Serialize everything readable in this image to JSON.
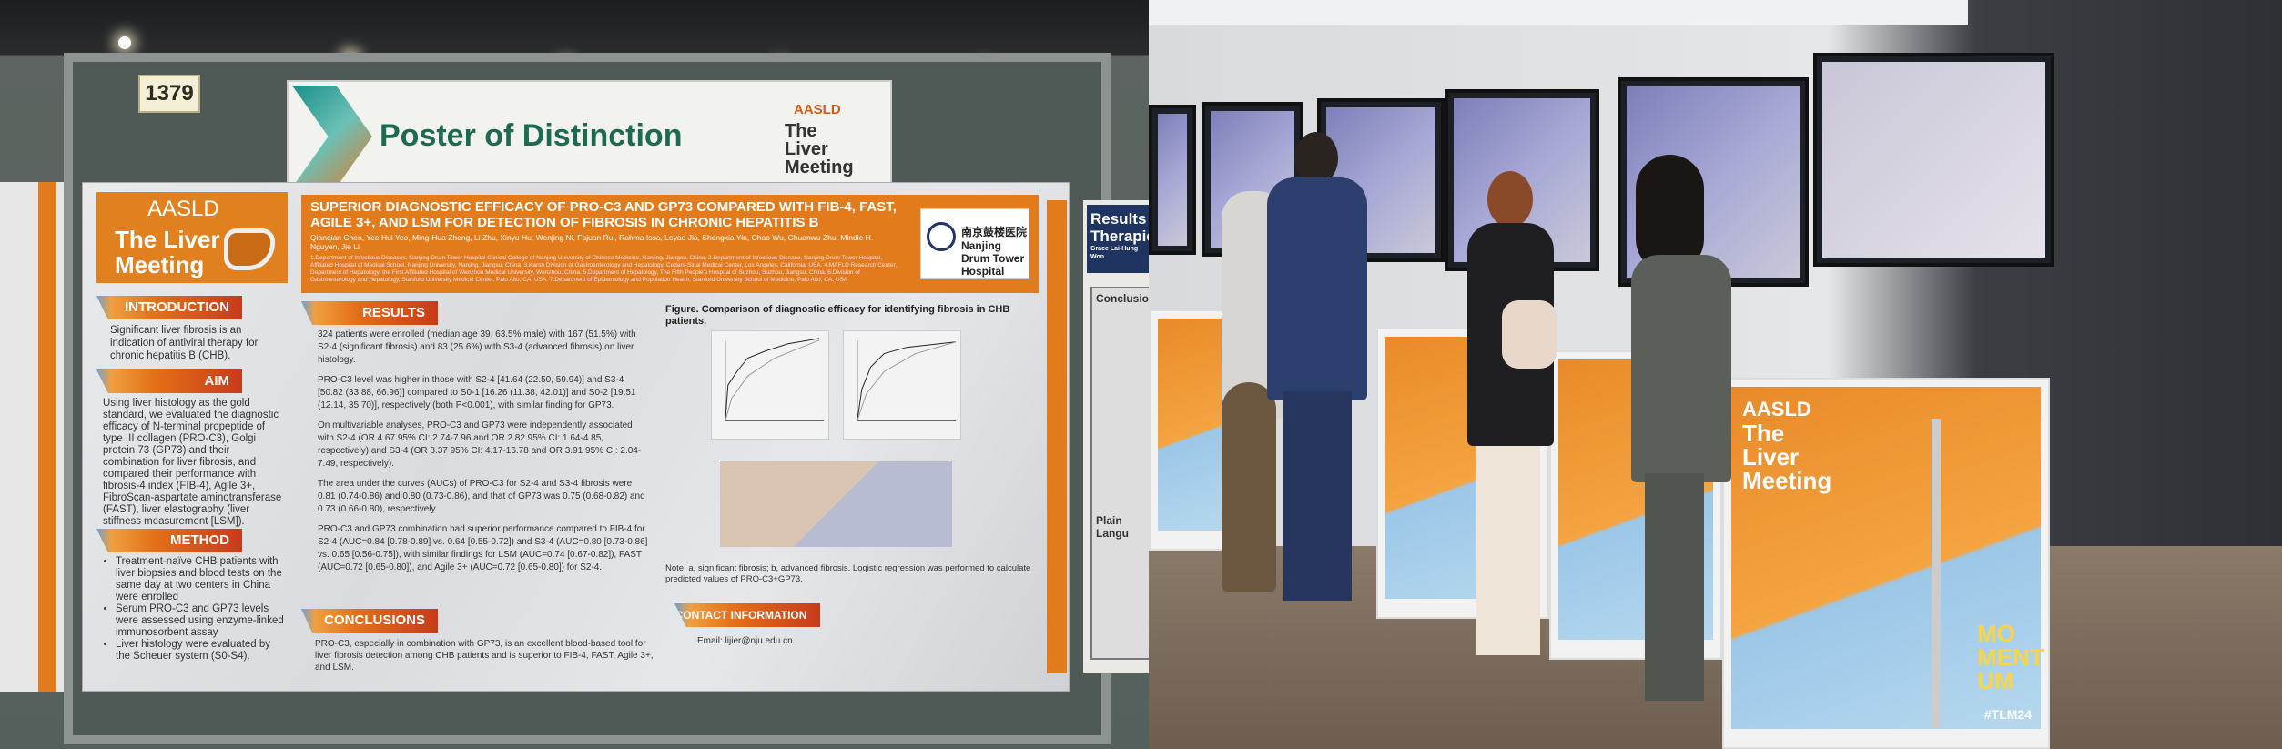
{
  "booth_number": "1379",
  "banner": {
    "title": "Poster of Distinction",
    "brand_top": "AASLD",
    "brand_name": "The Liver Meeting"
  },
  "poster": {
    "logo": {
      "top": "AASLD",
      "name": "The Liver Meeting"
    },
    "title": "SUPERIOR DIAGNOSTIC EFFICACY OF PRO-C3 AND GP73 COMPARED WITH FIB-4, FAST, AGILE 3+, AND LSM FOR DETECTION OF FIBROSIS IN CHRONIC HEPATITIS B",
    "authors": "Qianqian Chen, Yee Hui Yeo, Ming-Hua Zheng, Li Zhu, Xinyu Hu, Wenjing Ni, Fajuan Rui, Rahma Issa, Leyao Jia, Shengxia Yin, Chao Wu, Chuanwu Zhu, Mindie H. Nguyen, Jie Li",
    "affiliations": "1.Department of Infectious Diseases, Nanjing Drum Tower Hospital Clinical College of Nanjing University of Chinese Medicine, Nanjing, Jiangsu, China. 2.Department of Infectious Disease, Nanjing Drum Tower Hospital, Affiliated Hospital of Medical School, Nanjing University, Nanjing, Jiangsu, China. 3.Karsh Division of Gastroenterology and Hepatology, Cedars-Sinai Medical Center, Los Angeles, California, USA. 4.MAFLD Research Center, Department of Hepatology, the First Affiliated Hospital of Wenzhou Medical University, Wenzhou, China. 5.Department of Hepatology, The Fifth People's Hospital of Suzhou, Suzhou, Jiangsu, China. 6.Division of Gastroenterology and Hepatology, Stanford University Medical Center, Palo Alto, CA, USA. 7.Department of Epidemiology and Population Health, Stanford University School of Medicine, Palo Alto, CA, USA",
    "institution_logo": "南京鼓楼医院 Nanjing Drum Tower Hospital",
    "introduction": {
      "heading": "INTRODUCTION",
      "text": "Significant liver fibrosis is an indication of antiviral therapy for chronic hepatitis B (CHB)."
    },
    "aim": {
      "heading": "AIM",
      "text": "Using liver histology as the gold standard, we evaluated the diagnostic efficacy of N-terminal propeptide of type III collagen (PRO-C3), Golgi protein 73 (GP73) and their combination for liver fibrosis, and compared their performance with fibrosis-4 index (FIB-4), Agile 3+, FibroScan-aspartate aminotransferase (FAST), liver elastography (liver stiffness measurement [LSM])."
    },
    "method": {
      "heading": "METHOD",
      "items": [
        "Treatment-naïve CHB patients with liver biopsies and blood tests on the same day at two centers in China were enrolled",
        "Serum PRO-C3 and GP73 levels were assessed using enzyme-linked immunosorbent assay",
        "Liver histology were evaluated by the Scheuer system (S0-S4)."
      ]
    },
    "results": {
      "heading": "RESULTS",
      "paragraphs": [
        "324 patients were enrolled (median age 39, 63.5% male) with 167 (51.5%) with S2-4 (significant fibrosis) and 83 (25.6%) with S3-4 (advanced fibrosis) on liver histology.",
        "PRO-C3 level was higher in those with S2-4 [41.64 (22.50, 59.94)] and S3-4 [50.82 (33.88, 66.96)] compared to S0-1 [16.26 (11.38, 42.01)] and S0-2 [19.51 (12.14, 35.70)], respectively (both P<0.001), with similar finding for GP73.",
        "On multivariable analyses, PRO-C3 and GP73 were independently associated with S2-4 (OR 4.67 95% CI: 2.74-7.96 and OR 2.82 95% CI: 1.64-4.85, respectively) and S3-4 (OR 8.37 95% CI: 4.17-16.78 and OR 3.91 95% CI: 2.04-7.49, respectively).",
        "The area under the curves (AUCs) of PRO-C3 for S2-4 and S3-4 fibrosis were 0.81 (0.74-0.86) and 0.80 (0.73-0.86), and that of GP73 was 0.75 (0.68-0.82) and 0.73 (0.66-0.80), respectively.",
        "PRO-C3 and GP73 combination had superior performance compared to FIB-4 for S2-4 (AUC=0.84 [0.78-0.89] vs. 0.64 [0.55-0.72]) and S3-4 (AUC=0.80 [0.73-0.86] vs. 0.65 [0.56-0.75]), with similar findings for LSM (AUC=0.74 [0.67-0.82]), FAST (AUC=0.72 [0.65-0.80]), and Agile 3+ (AUC=0.72 [0.65-0.80]) for S2-4."
      ]
    },
    "figure": {
      "caption": "Figure. Comparison of diagnostic efficacy for identifying fibrosis in CHB patients.",
      "note": "Note: a, significant fibrosis; b, advanced fibrosis. Logistic regression was performed to calculate predicted values of PRO-C3+GP73."
    },
    "conclusions": {
      "heading": "CONCLUSIONS",
      "text": "PRO-C3, especially in combination with GP73, is an excellent blood-based tool for liver fibrosis detection among CHB patients and is superior to FIB-4, FAST, Agile 3+, and LSM."
    },
    "contact": {
      "heading": "CONTACT INFORMATION",
      "email": "Email: lijier@nju.edu.cn"
    }
  },
  "adjacent_poster": {
    "title": "Results Therapie",
    "author": "Grace Lai-Hung Won",
    "section1": "Conclusion",
    "section2": "Plain Langu"
  },
  "kiosk": {
    "brand_top": "AASLD",
    "brand_name": "The Liver Meeting",
    "slogan": "MO MENT UM",
    "hashtag": "#TLM24"
  },
  "colors": {
    "orange": "#e27b1c",
    "green_title": "#1d6a52",
    "navy": "#1f3461"
  }
}
